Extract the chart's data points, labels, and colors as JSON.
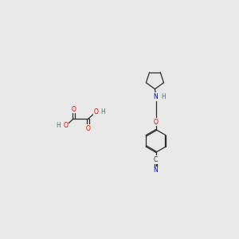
{
  "bg_color": "#e8e8e8",
  "bond_color": "#2a2a2a",
  "atom_colors": {
    "O": "#dd0000",
    "N": "#0000cc",
    "H": "#507070",
    "C": "#2a2a2a"
  },
  "font_size_atom": 5.5
}
